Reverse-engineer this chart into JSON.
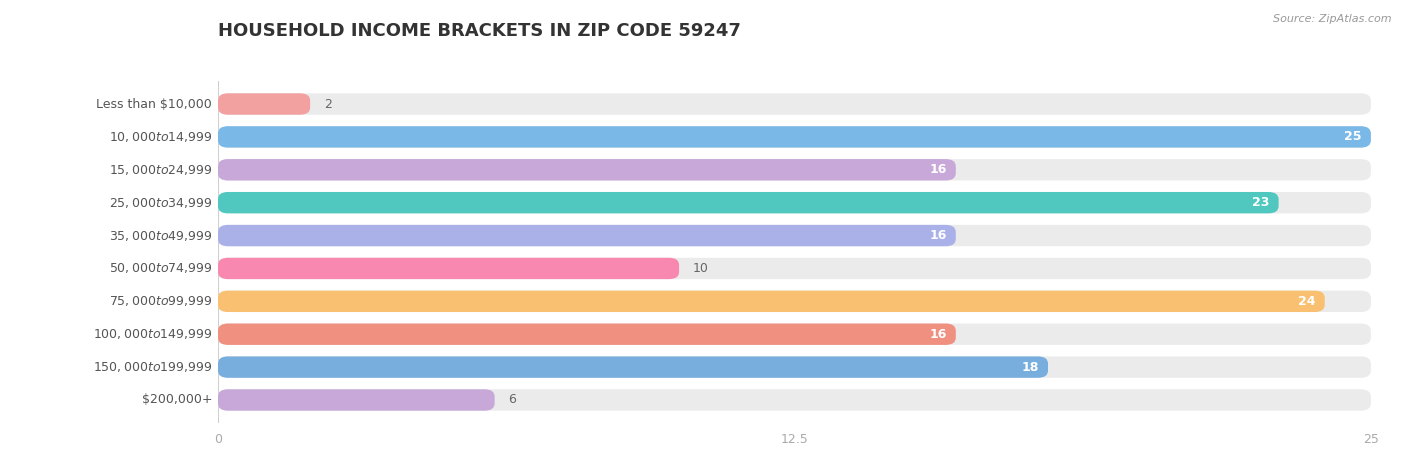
{
  "title": "HOUSEHOLD INCOME BRACKETS IN ZIP CODE 59247",
  "source": "Source: ZipAtlas.com",
  "categories": [
    "Less than $10,000",
    "$10,000 to $14,999",
    "$15,000 to $24,999",
    "$25,000 to $34,999",
    "$35,000 to $49,999",
    "$50,000 to $74,999",
    "$75,000 to $99,999",
    "$100,000 to $149,999",
    "$150,000 to $199,999",
    "$200,000+"
  ],
  "values": [
    2,
    25,
    16,
    23,
    16,
    10,
    24,
    16,
    18,
    6
  ],
  "bar_colors": [
    "#f2a0a0",
    "#7ab8e8",
    "#c8a8d8",
    "#50c8c0",
    "#aab0e8",
    "#f888b0",
    "#f8c070",
    "#f09080",
    "#78aede",
    "#c8a8d8"
  ],
  "xlim": [
    0,
    25
  ],
  "xticks": [
    0,
    12.5,
    25
  ],
  "title_fontsize": 13,
  "label_fontsize": 9,
  "value_fontsize": 9,
  "bar_height": 0.65,
  "bar_rounding": 0.22,
  "bg_color": "#ebebeb",
  "label_color": "#555555",
  "value_color_inside": "#ffffff",
  "value_color_outside": "#666666",
  "tick_color": "#aaaaaa",
  "grid_color": "#d0d0d0",
  "title_color": "#333333",
  "source_color": "#999999"
}
